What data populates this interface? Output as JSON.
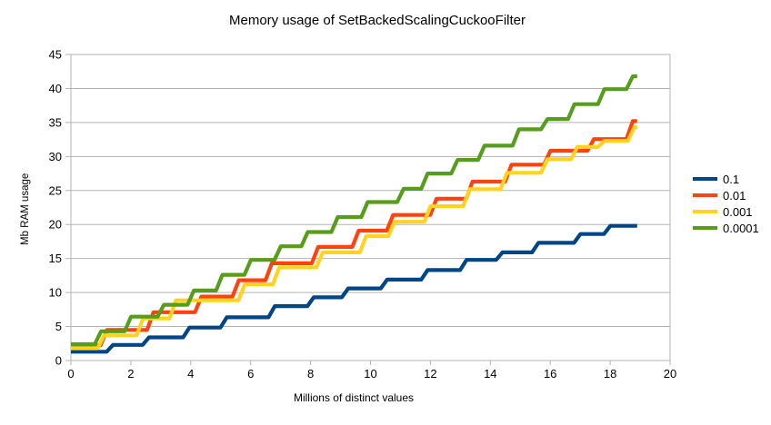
{
  "chart_data": {
    "type": "line",
    "subtype": "step",
    "title": "Memory usage of SetBackedScalingCuckooFilter",
    "xlabel": "Millions of distinct values",
    "ylabel": "Mb RAM usage",
    "xlim": [
      0,
      20
    ],
    "ylim": [
      0,
      45
    ],
    "xticks": [
      0,
      2,
      4,
      6,
      8,
      10,
      12,
      14,
      16,
      18,
      20
    ],
    "yticks": [
      0,
      5,
      10,
      15,
      20,
      25,
      30,
      35,
      40,
      45
    ],
    "grid": "horizontal",
    "legend_position": "right",
    "x_end": 18.9,
    "series": [
      {
        "name": "0.1",
        "color": "#004586",
        "steps": [
          [
            0,
            1.3
          ],
          [
            1.3,
            2.3
          ],
          [
            2.5,
            3.4
          ],
          [
            3.85,
            4.85
          ],
          [
            5.1,
            6.35
          ],
          [
            6.7,
            8.0
          ],
          [
            8.0,
            9.3
          ],
          [
            9.15,
            10.6
          ],
          [
            10.45,
            11.9
          ],
          [
            11.8,
            13.3
          ],
          [
            13.1,
            14.8
          ],
          [
            14.3,
            15.9
          ],
          [
            15.5,
            17.3
          ],
          [
            16.9,
            18.6
          ],
          [
            17.9,
            19.8
          ]
        ]
      },
      {
        "name": "0.01",
        "color": "#FF420E",
        "steps": [
          [
            0,
            2.25
          ],
          [
            1.1,
            4.5
          ],
          [
            2.65,
            7.1
          ],
          [
            4.25,
            9.4
          ],
          [
            5.5,
            11.8
          ],
          [
            6.6,
            14.3
          ],
          [
            8.15,
            16.7
          ],
          [
            9.5,
            19.1
          ],
          [
            10.65,
            21.4
          ],
          [
            12.1,
            23.8
          ],
          [
            13.3,
            26.3
          ],
          [
            14.6,
            28.8
          ],
          [
            15.9,
            30.85
          ],
          [
            17.35,
            32.55
          ],
          [
            18.65,
            35.2
          ]
        ]
      },
      {
        "name": "0.001",
        "color": "#FFD320",
        "steps": [
          [
            0,
            1.8
          ],
          [
            1.0,
            3.7
          ],
          [
            2.3,
            6.2
          ],
          [
            3.4,
            8.85
          ],
          [
            5.7,
            11.2
          ],
          [
            6.85,
            13.7
          ],
          [
            8.3,
            15.9
          ],
          [
            9.75,
            18.3
          ],
          [
            10.7,
            20.4
          ],
          [
            11.9,
            22.7
          ],
          [
            13.2,
            25.2
          ],
          [
            14.45,
            27.6
          ],
          [
            15.8,
            29.6
          ],
          [
            16.8,
            31.4
          ],
          [
            17.7,
            32.3
          ],
          [
            18.7,
            34.3
          ]
        ]
      },
      {
        "name": "0.0001",
        "color": "#579D1C",
        "steps": [
          [
            0,
            2.4
          ],
          [
            0.9,
            4.3
          ],
          [
            1.9,
            6.45
          ],
          [
            3.0,
            8.2
          ],
          [
            4.0,
            10.3
          ],
          [
            4.95,
            12.6
          ],
          [
            5.9,
            14.8
          ],
          [
            6.9,
            16.8
          ],
          [
            7.8,
            18.9
          ],
          [
            8.8,
            21.1
          ],
          [
            9.8,
            23.3
          ],
          [
            11.0,
            25.25
          ],
          [
            11.8,
            27.5
          ],
          [
            12.8,
            29.5
          ],
          [
            13.7,
            31.6
          ],
          [
            14.85,
            34.0
          ],
          [
            15.8,
            35.5
          ],
          [
            16.7,
            37.7
          ],
          [
            17.7,
            39.9
          ],
          [
            18.65,
            41.8
          ]
        ]
      }
    ]
  },
  "colors": {
    "grid": "#b3b3b3",
    "axis": "#b3b3b3",
    "text": "#000000",
    "background": "#ffffff"
  }
}
